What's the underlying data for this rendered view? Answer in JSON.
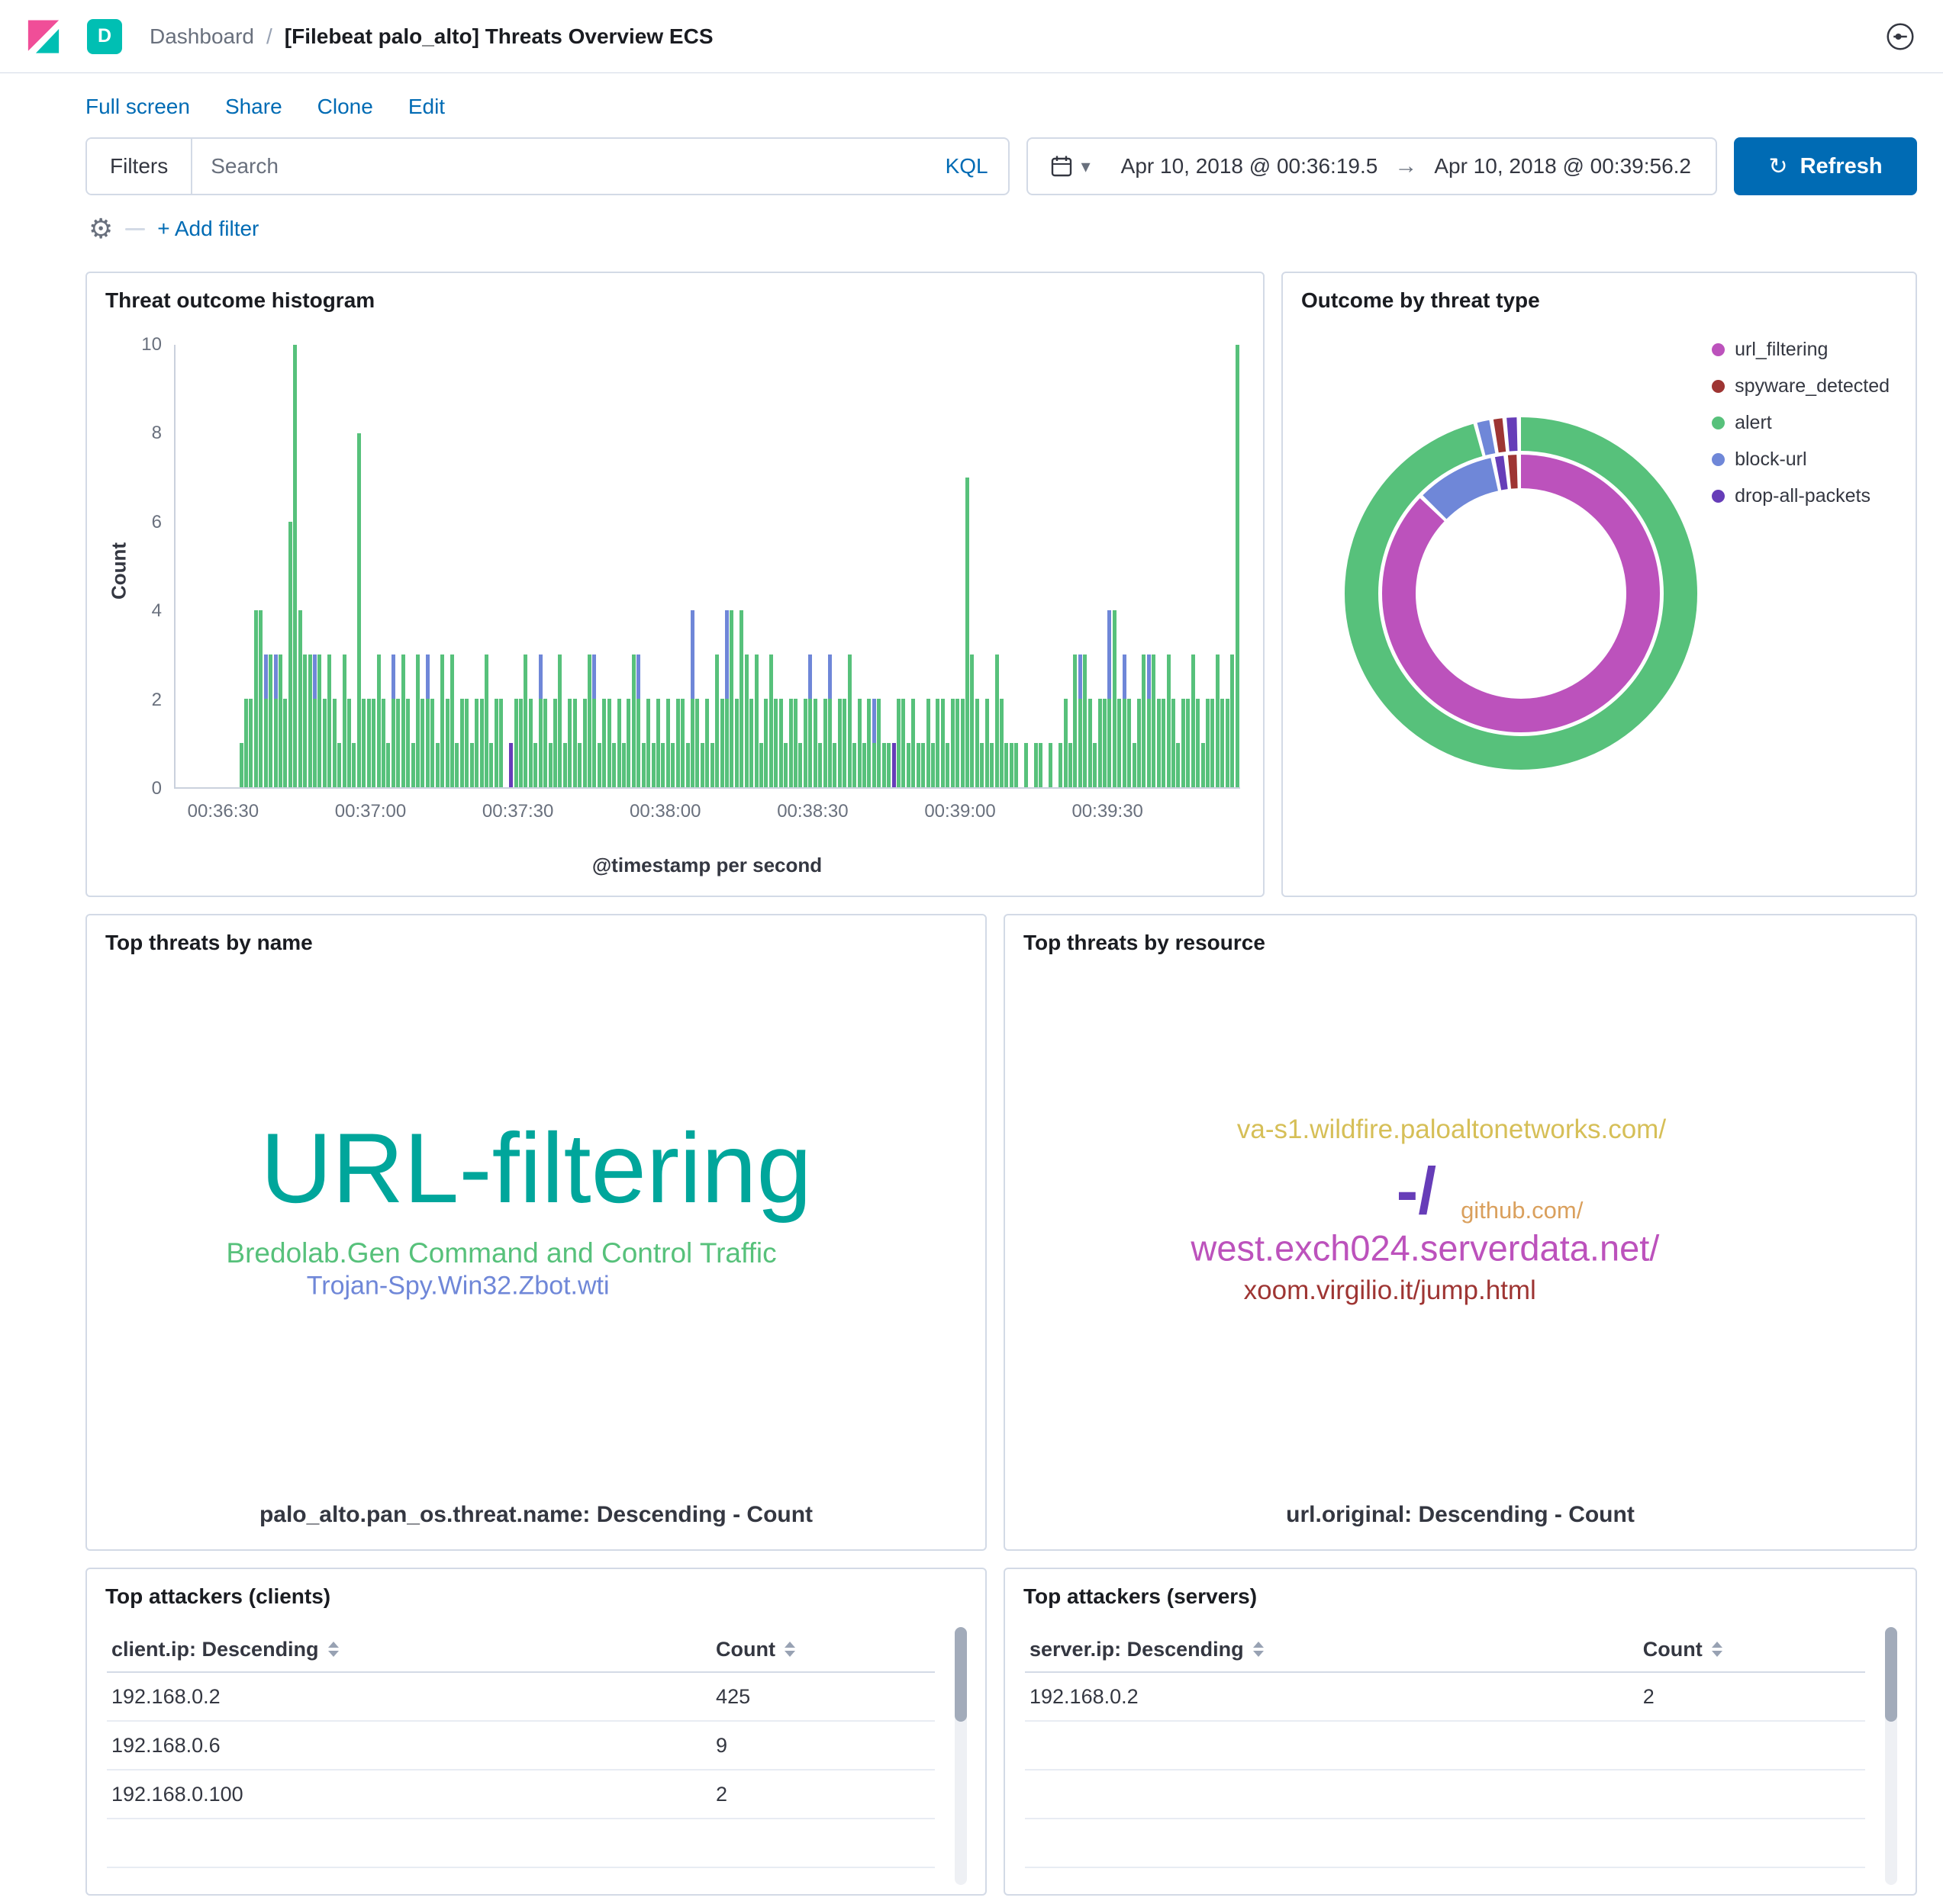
{
  "header": {
    "badge": "D",
    "breadcrumb_root": "Dashboard",
    "breadcrumb_sep": "/",
    "title": "[Filebeat palo_alto] Threats Overview ECS"
  },
  "actions": [
    "Full screen",
    "Share",
    "Clone",
    "Edit"
  ],
  "query_bar": {
    "filters_label": "Filters",
    "search_placeholder": "Search",
    "kql_label": "KQL",
    "date_start": "Apr 10, 2018 @ 00:36:19.5",
    "date_arrow": "→",
    "date_end": "Apr 10, 2018 @ 00:39:56.2",
    "refresh_label": "Refresh",
    "refresh_glyph": "↻",
    "chevron": "▾",
    "gear_glyph": "⚙",
    "add_filter_label": "+ Add filter"
  },
  "colors": {
    "link_blue": "#006bb4",
    "badge_teal": "#00bfb3",
    "panel_border": "#d3dae6",
    "alert_green": "#57c17b",
    "block_url_blue": "#6f87d8",
    "drop_purple": "#663db8",
    "url_filtering_magenta": "#bc52bc",
    "spyware_red": "#9e3533"
  },
  "panels": {
    "histogram": {
      "title": "Threat outcome histogram"
    },
    "donut": {
      "title": "Outcome by threat type"
    },
    "names": {
      "title": "Top threats by name"
    },
    "resources": {
      "title": "Top threats by resource"
    },
    "clients": {
      "title": "Top attackers (clients)"
    },
    "servers": {
      "title": "Top attackers (servers)"
    }
  },
  "chart_data": [
    {
      "id": "threat_histogram",
      "type": "bar",
      "stacked": true,
      "title": "Threat outcome histogram",
      "xlabel": "@timestamp per second",
      "ylabel": "Count",
      "ylim": [
        0,
        10
      ],
      "y_ticks": [
        0,
        2,
        4,
        6,
        8,
        10
      ],
      "x_range_seconds": 217,
      "x_start": "00:36:20",
      "x_end": "00:39:56",
      "x_ticks": [
        {
          "label": "00:36:30",
          "s": 10
        },
        {
          "label": "00:37:00",
          "s": 40
        },
        {
          "label": "00:37:30",
          "s": 70
        },
        {
          "label": "00:38:00",
          "s": 100
        },
        {
          "label": "00:38:30",
          "s": 130
        },
        {
          "label": "00:39:00",
          "s": 160
        },
        {
          "label": "00:39:30",
          "s": 190
        }
      ],
      "series": [
        {
          "name": "alert",
          "color": "#57c17b"
        },
        {
          "name": "block-url",
          "color": "#6f87d8"
        },
        {
          "name": "drop-all-packets",
          "color": "#663db8"
        }
      ],
      "bars_format": [
        "second_offset",
        "alert",
        "block-url",
        "drop-all-packets"
      ],
      "bars": [
        [
          13,
          1
        ],
        [
          14,
          2
        ],
        [
          15,
          2
        ],
        [
          16,
          4
        ],
        [
          17,
          4
        ],
        [
          18,
          2,
          1
        ],
        [
          19,
          3
        ],
        [
          20,
          2,
          1
        ],
        [
          21,
          3
        ],
        [
          22,
          2
        ],
        [
          23,
          6
        ],
        [
          24,
          10
        ],
        [
          25,
          4
        ],
        [
          26,
          3
        ],
        [
          27,
          3
        ],
        [
          28,
          2,
          1
        ],
        [
          29,
          3
        ],
        [
          30,
          2
        ],
        [
          31,
          3
        ],
        [
          32,
          2
        ],
        [
          33,
          1
        ],
        [
          34,
          3
        ],
        [
          35,
          2
        ],
        [
          36,
          1
        ],
        [
          37,
          8
        ],
        [
          38,
          2
        ],
        [
          39,
          2
        ],
        [
          40,
          2
        ],
        [
          41,
          3
        ],
        [
          42,
          2
        ],
        [
          43,
          1
        ],
        [
          44,
          2,
          1
        ],
        [
          45,
          2
        ],
        [
          46,
          3
        ],
        [
          47,
          2
        ],
        [
          48,
          1
        ],
        [
          49,
          3
        ],
        [
          50,
          2
        ],
        [
          51,
          2,
          1
        ],
        [
          52,
          2
        ],
        [
          53,
          1
        ],
        [
          54,
          3
        ],
        [
          55,
          2
        ],
        [
          56,
          3
        ],
        [
          57,
          1
        ],
        [
          58,
          2
        ],
        [
          59,
          2
        ],
        [
          60,
          1
        ],
        [
          61,
          2
        ],
        [
          62,
          2
        ],
        [
          63,
          3
        ],
        [
          64,
          1
        ],
        [
          65,
          2
        ],
        [
          66,
          2
        ],
        [
          68,
          0,
          0,
          1
        ],
        [
          69,
          2
        ],
        [
          70,
          2
        ],
        [
          71,
          3
        ],
        [
          72,
          2
        ],
        [
          73,
          1
        ],
        [
          74,
          2,
          1
        ],
        [
          75,
          2
        ],
        [
          76,
          1
        ],
        [
          77,
          2
        ],
        [
          78,
          3
        ],
        [
          79,
          1
        ],
        [
          80,
          2
        ],
        [
          81,
          2
        ],
        [
          82,
          1
        ],
        [
          83,
          2
        ],
        [
          84,
          3
        ],
        [
          85,
          2,
          1
        ],
        [
          86,
          1
        ],
        [
          87,
          2
        ],
        [
          88,
          2
        ],
        [
          89,
          1
        ],
        [
          90,
          2
        ],
        [
          91,
          1
        ],
        [
          92,
          2
        ],
        [
          93,
          3
        ],
        [
          94,
          2,
          1
        ],
        [
          95,
          1
        ],
        [
          96,
          2
        ],
        [
          97,
          1
        ],
        [
          98,
          2
        ],
        [
          99,
          1
        ],
        [
          100,
          2
        ],
        [
          101,
          1
        ],
        [
          102,
          2
        ],
        [
          103,
          2
        ],
        [
          104,
          1
        ],
        [
          105,
          2,
          2
        ],
        [
          106,
          2
        ],
        [
          107,
          1
        ],
        [
          108,
          2
        ],
        [
          109,
          1
        ],
        [
          110,
          3
        ],
        [
          111,
          2
        ],
        [
          112,
          2,
          2
        ],
        [
          113,
          4
        ],
        [
          114,
          2
        ],
        [
          115,
          4
        ],
        [
          116,
          3
        ],
        [
          117,
          2
        ],
        [
          118,
          3
        ],
        [
          119,
          1
        ],
        [
          120,
          2
        ],
        [
          121,
          3
        ],
        [
          122,
          2
        ],
        [
          123,
          2
        ],
        [
          124,
          1
        ],
        [
          125,
          2
        ],
        [
          126,
          2
        ],
        [
          127,
          1
        ],
        [
          128,
          2
        ],
        [
          129,
          2,
          1
        ],
        [
          130,
          2
        ],
        [
          131,
          1
        ],
        [
          132,
          2
        ],
        [
          133,
          2,
          1
        ],
        [
          134,
          1
        ],
        [
          135,
          2
        ],
        [
          136,
          2
        ],
        [
          137,
          3
        ],
        [
          138,
          1
        ],
        [
          139,
          2
        ],
        [
          140,
          1
        ],
        [
          141,
          2
        ],
        [
          142,
          1,
          1
        ],
        [
          143,
          2
        ],
        [
          144,
          1
        ],
        [
          145,
          1
        ],
        [
          146,
          0,
          0,
          1
        ],
        [
          147,
          2
        ],
        [
          148,
          2
        ],
        [
          149,
          1
        ],
        [
          150,
          2
        ],
        [
          151,
          1
        ],
        [
          152,
          1
        ],
        [
          153,
          2
        ],
        [
          154,
          1
        ],
        [
          155,
          2
        ],
        [
          156,
          2
        ],
        [
          157,
          1
        ],
        [
          158,
          2
        ],
        [
          159,
          2
        ],
        [
          160,
          2
        ],
        [
          161,
          7
        ],
        [
          162,
          3
        ],
        [
          163,
          2
        ],
        [
          164,
          1
        ],
        [
          165,
          2
        ],
        [
          166,
          1
        ],
        [
          167,
          3
        ],
        [
          168,
          2
        ],
        [
          169,
          1
        ],
        [
          170,
          1
        ],
        [
          171,
          1
        ],
        [
          173,
          1
        ],
        [
          175,
          1
        ],
        [
          176,
          1
        ],
        [
          178,
          1
        ],
        [
          180,
          1
        ],
        [
          181,
          2
        ],
        [
          182,
          1
        ],
        [
          183,
          3
        ],
        [
          184,
          2,
          1
        ],
        [
          185,
          3
        ],
        [
          186,
          2
        ],
        [
          187,
          1
        ],
        [
          188,
          2
        ],
        [
          189,
          2
        ],
        [
          190,
          2,
          2
        ],
        [
          191,
          4
        ],
        [
          192,
          2
        ],
        [
          193,
          2,
          1
        ],
        [
          194,
          2
        ],
        [
          195,
          1
        ],
        [
          196,
          2
        ],
        [
          197,
          3
        ],
        [
          198,
          2,
          1
        ],
        [
          199,
          3
        ],
        [
          200,
          2
        ],
        [
          201,
          2
        ],
        [
          202,
          3
        ],
        [
          203,
          2
        ],
        [
          204,
          1
        ],
        [
          205,
          2
        ],
        [
          206,
          2
        ],
        [
          207,
          3
        ],
        [
          208,
          2
        ],
        [
          209,
          1
        ],
        [
          210,
          2
        ],
        [
          211,
          2
        ],
        [
          212,
          3
        ],
        [
          213,
          2
        ],
        [
          214,
          2
        ],
        [
          215,
          3
        ],
        [
          216,
          10
        ]
      ]
    },
    {
      "id": "outcome_donut",
      "type": "pie",
      "title": "Outcome by threat type",
      "legend_position": "top-right",
      "legend": [
        {
          "label": "url_filtering",
          "color": "#bc52bc"
        },
        {
          "label": "spyware_detected",
          "color": "#9e3533"
        },
        {
          "label": "alert",
          "color": "#57c17b"
        },
        {
          "label": "block-url",
          "color": "#6f87d8"
        },
        {
          "label": "drop-all-packets",
          "color": "#663db8"
        }
      ],
      "rings": [
        {
          "position": "inner",
          "slices": [
            {
              "label": "url_filtering",
              "pct": 87.5,
              "color": "#bc52bc"
            },
            {
              "label": "block-url",
              "pct": 9.5,
              "color": "#6f87d8"
            },
            {
              "label": "drop-all-packets",
              "pct": 1.5,
              "color": "#663db8"
            },
            {
              "label": "spyware_detected",
              "pct": 1.5,
              "color": "#9e3533"
            }
          ]
        },
        {
          "position": "outer",
          "slices": [
            {
              "label": "alert",
              "pct": 96,
              "color": "#57c17b"
            },
            {
              "label": "block-url",
              "pct": 1.5,
              "color": "#6f87d8"
            },
            {
              "label": "spyware_detected",
              "pct": 1.2,
              "color": "#9e3533"
            },
            {
              "label": "drop-all-packets",
              "pct": 1.3,
              "color": "#663db8"
            }
          ]
        }
      ]
    },
    {
      "id": "top_threats_by_name",
      "type": "tag_cloud",
      "title": "Top threats by name",
      "caption": "palo_alto.pan_os.threat.name: Descending - Count",
      "tags": [
        {
          "text": "URL-filtering",
          "color": "#00a69b",
          "size": 130,
          "x": 50,
          "y": 42,
          "weight": 400
        },
        {
          "text": "Bredolab.Gen Command and Control Traffic",
          "color": "#57c17b",
          "size": 37,
          "x": 46,
          "y": 60,
          "weight": 400
        },
        {
          "text": "Trojan-Spy.Win32.Zbot.wti",
          "color": "#6f87d8",
          "size": 34,
          "x": 41,
          "y": 67,
          "weight": 400
        }
      ]
    },
    {
      "id": "top_threats_by_resource",
      "type": "tag_cloud",
      "title": "Top threats by resource",
      "caption": "url.original: Descending - Count",
      "tags": [
        {
          "text": "va-s1.wildfire.paloaltonetworks.com/",
          "color": "#d6bf57",
          "size": 35,
          "x": 49,
          "y": 34,
          "weight": 400
        },
        {
          "text": "-/",
          "color": "#663db8",
          "size": 86,
          "x": 45,
          "y": 47,
          "weight": 600
        },
        {
          "text": "github.com/",
          "color": "#daa05d",
          "size": 31,
          "x": 57,
          "y": 51,
          "weight": 400
        },
        {
          "text": "west.exch024.serverdata.net/",
          "color": "#bc52bc",
          "size": 47,
          "x": 46,
          "y": 59,
          "weight": 400
        },
        {
          "text": "xoom.virgilio.it/jump.html",
          "color": "#9e3533",
          "size": 35,
          "x": 42,
          "y": 68,
          "weight": 400
        }
      ]
    },
    {
      "id": "top_attackers_clients",
      "type": "table",
      "title": "Top attackers (clients)",
      "columns": [
        "client.ip: Descending",
        "Count"
      ],
      "rows": [
        [
          "192.168.0.2",
          "425"
        ],
        [
          "192.168.0.6",
          "9"
        ],
        [
          "192.168.0.100",
          "2"
        ]
      ],
      "empty_rows": 2
    },
    {
      "id": "top_attackers_servers",
      "type": "table",
      "title": "Top attackers (servers)",
      "columns": [
        "server.ip: Descending",
        "Count"
      ],
      "rows": [
        [
          "192.168.0.2",
          "2"
        ]
      ],
      "empty_rows": 4
    }
  ]
}
